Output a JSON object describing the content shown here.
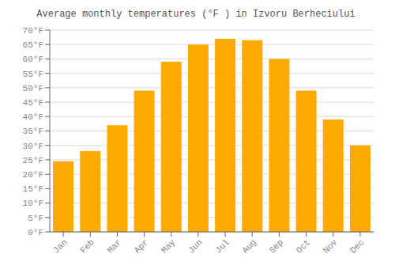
{
  "chart_data": {
    "type": "bar",
    "title": "Average monthly temperatures (°F ) in Izvoru Berheciului",
    "categories": [
      "Jan",
      "Feb",
      "Mar",
      "Apr",
      "May",
      "Jun",
      "Jul",
      "Aug",
      "Sep",
      "Oct",
      "Nov",
      "Dec"
    ],
    "values": [
      24.5,
      28,
      37,
      49,
      59,
      65,
      67,
      66.5,
      60,
      49,
      39,
      30
    ],
    "color": "#FFAA00",
    "ylim": [
      0,
      70
    ],
    "yticks": [
      {
        "value": 0,
        "label": "0°F"
      },
      {
        "value": 5,
        "label": "5°F"
      },
      {
        "value": 10,
        "label": "10°F"
      },
      {
        "value": 15,
        "label": "15°F"
      },
      {
        "value": 20,
        "label": "20°F"
      },
      {
        "value": 25,
        "label": "25°F"
      },
      {
        "value": 30,
        "label": "30°F"
      },
      {
        "value": 35,
        "label": "35°F"
      },
      {
        "value": 40,
        "label": "40°F"
      },
      {
        "value": 45,
        "label": "45°F"
      },
      {
        "value": 50,
        "label": "50°F"
      },
      {
        "value": 55,
        "label": "55°F"
      },
      {
        "value": 60,
        "label": "60°F"
      },
      {
        "value": 65,
        "label": "65°F"
      },
      {
        "value": 70,
        "label": "70°F"
      }
    ],
    "grid": true
  }
}
